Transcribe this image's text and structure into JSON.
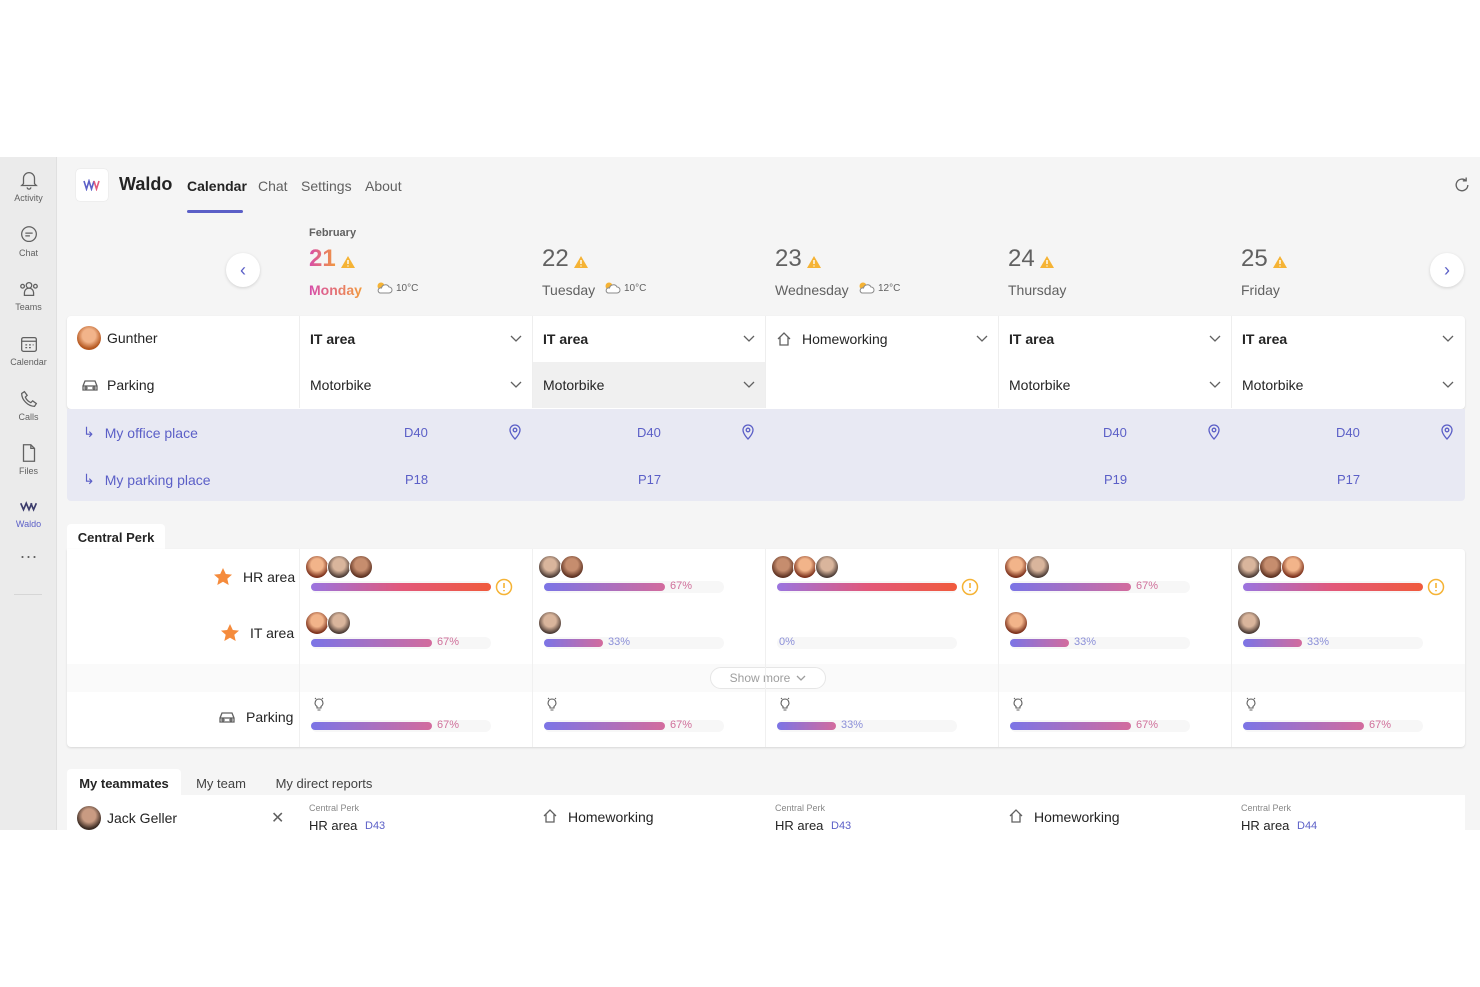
{
  "rail": [
    {
      "label": "Activity",
      "icon": "bell-icon"
    },
    {
      "label": "Chat",
      "icon": "chat-icon"
    },
    {
      "label": "Teams",
      "icon": "teams-icon"
    },
    {
      "label": "Calendar",
      "icon": "calendar-icon"
    },
    {
      "label": "Calls",
      "icon": "phone-icon"
    },
    {
      "label": "Files",
      "icon": "file-icon"
    },
    {
      "label": "Waldo",
      "icon": "waldo-logo-icon"
    },
    {
      "label": "",
      "icon": "more-icon"
    }
  ],
  "header": {
    "app_name": "Waldo",
    "tabs": [
      "Calendar",
      "Chat",
      "Settings",
      "About"
    ],
    "active_tab": "Calendar"
  },
  "week": {
    "month": "February",
    "days": [
      {
        "num": "21",
        "name": "Monday",
        "today": true,
        "weather": "10°C"
      },
      {
        "num": "22",
        "name": "Tuesday",
        "today": false,
        "weather": "10°C"
      },
      {
        "num": "23",
        "name": "Wednesday",
        "today": false,
        "weather": "12°C"
      },
      {
        "num": "24",
        "name": "Thursday",
        "today": false,
        "weather": ""
      },
      {
        "num": "25",
        "name": "Friday",
        "today": false,
        "weather": ""
      }
    ]
  },
  "plan": {
    "user": "Gunther",
    "parking_label": "Parking",
    "locations": [
      "IT area",
      "IT area",
      "Homeworking",
      "IT area",
      "IT area"
    ],
    "parking": [
      "Motorbike",
      "Motorbike",
      "",
      "Motorbike",
      "Motorbike"
    ]
  },
  "places": {
    "office_label": "My office place",
    "parking_label": "My parking place",
    "office": [
      "D40",
      "D40",
      "",
      "D40",
      "D40"
    ],
    "parking": [
      "P18",
      "P17",
      "",
      "P19",
      "P17"
    ]
  },
  "occupancy": {
    "site": "Central Perk",
    "areas": [
      {
        "name": "HR area",
        "values": [
          100,
          67,
          100,
          67,
          100
        ],
        "labels": [
          "",
          "67%",
          "",
          "67%",
          ""
        ],
        "avatars": [
          3,
          2,
          3,
          2,
          3
        ]
      },
      {
        "name": "IT area",
        "values": [
          67,
          33,
          0,
          33,
          33
        ],
        "labels": [
          "67%",
          "33%",
          "0%",
          "33%",
          "33%"
        ],
        "avatars": [
          2,
          1,
          0,
          1,
          1
        ]
      }
    ],
    "show_more": "Show more",
    "parking": {
      "name": "Parking",
      "values": [
        67,
        67,
        33,
        67,
        67
      ],
      "labels": [
        "67%",
        "67%",
        "33%",
        "67%",
        "67%"
      ]
    }
  },
  "team": {
    "tabs": [
      "My teammates",
      "My team",
      "My direct reports"
    ],
    "member": "Jack Geller",
    "days": [
      {
        "site": "Central Perk",
        "area": "HR area",
        "desk": "D43"
      },
      {
        "site": "",
        "area": "Homeworking",
        "desk": ""
      },
      {
        "site": "Central Perk",
        "area": "HR area",
        "desk": "D43"
      },
      {
        "site": "",
        "area": "Homeworking",
        "desk": ""
      },
      {
        "site": "Central Perk",
        "area": "HR area",
        "desk": "D44"
      }
    ]
  },
  "colors": {
    "accent": "#5b5fc7",
    "warning": "#f0a830",
    "bar_start": "#7b74e6",
    "bar_end": "#d36b9d",
    "bar_full_end": "#f05a3c"
  }
}
